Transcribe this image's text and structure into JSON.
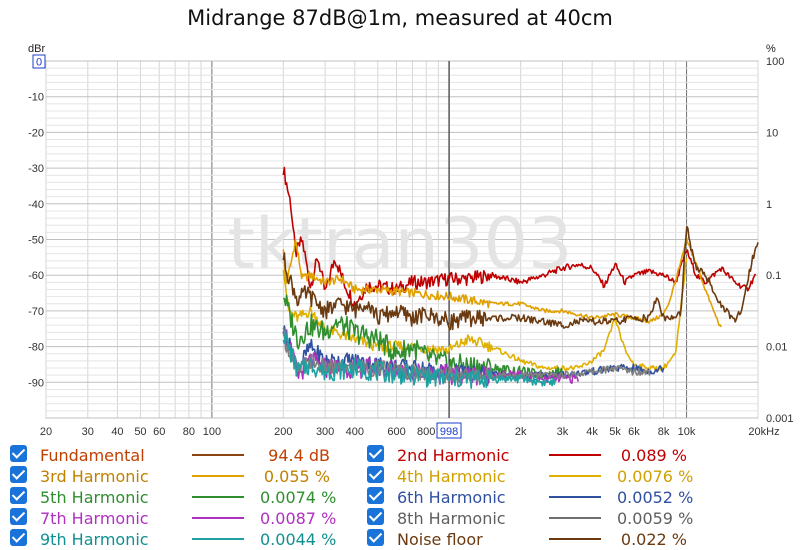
{
  "title": "Midrange 87dB@1m, measured at 40cm",
  "watermark": "tktran303",
  "chart_data": {
    "type": "line",
    "title": "Midrange 87dB@1m, measured at 40cm",
    "x_scale": "log",
    "xlim": [
      20,
      20000
    ],
    "x_tick_labels": [
      {
        "v": 20,
        "t": "20"
      },
      {
        "v": 30,
        "t": "30"
      },
      {
        "v": 40,
        "t": "40"
      },
      {
        "v": 50,
        "t": "50"
      },
      {
        "v": 60,
        "t": "60"
      },
      {
        "v": 80,
        "t": "80"
      },
      {
        "v": 100,
        "t": "100"
      },
      {
        "v": 200,
        "t": "200"
      },
      {
        "v": 300,
        "t": "300"
      },
      {
        "v": 400,
        "t": "400"
      },
      {
        "v": 600,
        "t": "600"
      },
      {
        "v": 800,
        "t": "800"
      },
      {
        "v": 2000,
        "t": "2k"
      },
      {
        "v": 3000,
        "t": "3k"
      },
      {
        "v": 4000,
        "t": "4k"
      },
      {
        "v": 5000,
        "t": "5k"
      },
      {
        "v": 6000,
        "t": "6k"
      },
      {
        "v": 8000,
        "t": "8k"
      },
      {
        "v": 10000,
        "t": "10k"
      },
      {
        "v": 20000,
        "t": "20kHz"
      }
    ],
    "cursor_label": "998",
    "cursor_x": 998,
    "left_axis": {
      "unit": "dBr",
      "top_label": "0",
      "ylim": [
        -100,
        0
      ],
      "ticks": [
        {
          "v": -10,
          "t": "-10"
        },
        {
          "v": -20,
          "t": "-20"
        },
        {
          "v": -30,
          "t": "-30"
        },
        {
          "v": -40,
          "t": "-40"
        },
        {
          "v": -50,
          "t": "-50"
        },
        {
          "v": -60,
          "t": "-60"
        },
        {
          "v": -70,
          "t": "-70"
        },
        {
          "v": -80,
          "t": "-80"
        },
        {
          "v": -90,
          "t": "-90"
        }
      ]
    },
    "right_axis": {
      "unit": "%",
      "scale": "log",
      "ylim": [
        0.001,
        100
      ],
      "ticks": [
        {
          "v": 100,
          "t": "100"
        },
        {
          "v": 10,
          "t": "10"
        },
        {
          "v": 1,
          "t": "1"
        },
        {
          "v": 0.1,
          "t": "0.1"
        },
        {
          "v": 0.01,
          "t": "0.01"
        },
        {
          "v": 0.001,
          "t": "0.001"
        }
      ]
    },
    "grid": true,
    "series": [
      {
        "name": "2nd Harmonic",
        "color": "#c00000",
        "noise": 1.2,
        "points": [
          [
            200,
            -30
          ],
          [
            215,
            -40
          ],
          [
            225,
            -54
          ],
          [
            240,
            -50
          ],
          [
            260,
            -63
          ],
          [
            280,
            -55
          ],
          [
            300,
            -65
          ],
          [
            330,
            -55
          ],
          [
            360,
            -62
          ],
          [
            400,
            -68
          ],
          [
            450,
            -63
          ],
          [
            500,
            -63
          ],
          [
            600,
            -64
          ],
          [
            700,
            -62
          ],
          [
            800,
            -62
          ],
          [
            1000,
            -61
          ],
          [
            1200,
            -61
          ],
          [
            1500,
            -60
          ],
          [
            2000,
            -62
          ],
          [
            2500,
            -60
          ],
          [
            3000,
            -58
          ],
          [
            3500,
            -57
          ],
          [
            4000,
            -58
          ],
          [
            4500,
            -63
          ],
          [
            5000,
            -57
          ],
          [
            5500,
            -62
          ],
          [
            6000,
            -60
          ],
          [
            7000,
            -59
          ],
          [
            8000,
            -60
          ],
          [
            9000,
            -62
          ],
          [
            10000,
            -53
          ],
          [
            11000,
            -60
          ],
          [
            12000,
            -62
          ],
          [
            14000,
            -58
          ],
          [
            16000,
            -62
          ],
          [
            18000,
            -64
          ],
          [
            19500,
            -60
          ]
        ]
      },
      {
        "name": "3rd Harmonic",
        "color": "#e0a000",
        "noise": 0.8,
        "points": [
          [
            200,
            -52
          ],
          [
            205,
            -63
          ],
          [
            215,
            -57
          ],
          [
            225,
            -50
          ],
          [
            240,
            -61
          ],
          [
            260,
            -60
          ],
          [
            300,
            -62
          ],
          [
            350,
            -61
          ],
          [
            400,
            -64
          ],
          [
            500,
            -64
          ],
          [
            700,
            -65
          ],
          [
            1000,
            -66
          ],
          [
            1500,
            -68
          ],
          [
            2000,
            -68
          ],
          [
            2500,
            -70
          ],
          [
            3000,
            -70
          ],
          [
            3500,
            -71
          ],
          [
            4000,
            -72
          ],
          [
            5000,
            -71
          ],
          [
            6000,
            -72
          ],
          [
            7000,
            -73
          ],
          [
            8000,
            -71
          ],
          [
            8500,
            -67
          ],
          [
            9500,
            -56
          ],
          [
            10000,
            -50
          ],
          [
            11000,
            -57
          ],
          [
            12000,
            -64
          ],
          [
            13000,
            -70
          ],
          [
            14000,
            -75
          ]
        ]
      },
      {
        "name": "4th Harmonic",
        "color": "#e0b000",
        "noise": 1.0,
        "points": [
          [
            200,
            -57
          ],
          [
            210,
            -70
          ],
          [
            230,
            -72
          ],
          [
            260,
            -70
          ],
          [
            300,
            -75
          ],
          [
            400,
            -78
          ],
          [
            500,
            -80
          ],
          [
            700,
            -80
          ],
          [
            1000,
            -81
          ],
          [
            1200,
            -78
          ],
          [
            1500,
            -80
          ],
          [
            2000,
            -84
          ],
          [
            2500,
            -86
          ],
          [
            3000,
            -86
          ],
          [
            3500,
            -86
          ],
          [
            4000,
            -84
          ],
          [
            4500,
            -81
          ],
          [
            5000,
            -72
          ],
          [
            5500,
            -81
          ],
          [
            6000,
            -85
          ],
          [
            7000,
            -86
          ],
          [
            8000,
            -86
          ],
          [
            9000,
            -82
          ],
          [
            10000,
            -55
          ]
        ]
      },
      {
        "name": "5th Harmonic",
        "color": "#2f8f2f",
        "noise": 2.0,
        "points": [
          [
            200,
            -65
          ],
          [
            210,
            -70
          ],
          [
            230,
            -78
          ],
          [
            260,
            -74
          ],
          [
            300,
            -76
          ],
          [
            330,
            -73
          ],
          [
            400,
            -76
          ],
          [
            500,
            -78
          ],
          [
            600,
            -82
          ],
          [
            700,
            -80
          ],
          [
            800,
            -83
          ],
          [
            1000,
            -85
          ],
          [
            1500,
            -86
          ],
          [
            2000,
            -87
          ],
          [
            2500,
            -88
          ],
          [
            3000,
            -87
          ]
        ]
      },
      {
        "name": "6th Harmonic",
        "color": "#3050a0",
        "noise": 1.5,
        "points": [
          [
            200,
            -75
          ],
          [
            230,
            -86
          ],
          [
            260,
            -80
          ],
          [
            300,
            -84
          ],
          [
            400,
            -84
          ],
          [
            500,
            -85
          ],
          [
            700,
            -86
          ],
          [
            1000,
            -87
          ],
          [
            1500,
            -88
          ],
          [
            2000,
            -88
          ],
          [
            3000,
            -88
          ],
          [
            4000,
            -87
          ],
          [
            5000,
            -86
          ],
          [
            6000,
            -86
          ],
          [
            7000,
            -87
          ],
          [
            8000,
            -86
          ]
        ]
      },
      {
        "name": "7th Harmonic",
        "color": "#b030c0",
        "noise": 1.8,
        "points": [
          [
            200,
            -74
          ],
          [
            230,
            -88
          ],
          [
            260,
            -84
          ],
          [
            300,
            -86
          ],
          [
            400,
            -86
          ],
          [
            500,
            -86
          ],
          [
            700,
            -87
          ],
          [
            1000,
            -88
          ],
          [
            1500,
            -88
          ],
          [
            2000,
            -88
          ],
          [
            2500,
            -89
          ],
          [
            3000,
            -89
          ],
          [
            3500,
            -89
          ]
        ]
      },
      {
        "name": "8th Harmonic",
        "color": "#808080",
        "noise": 1.5,
        "points": [
          [
            200,
            -77
          ],
          [
            230,
            -87
          ],
          [
            260,
            -84
          ],
          [
            300,
            -86
          ],
          [
            400,
            -86
          ],
          [
            500,
            -86
          ],
          [
            700,
            -87
          ],
          [
            1000,
            -88
          ],
          [
            1500,
            -88
          ],
          [
            2000,
            -88
          ],
          [
            3000,
            -88
          ],
          [
            4000,
            -87
          ],
          [
            5000,
            -86
          ],
          [
            6000,
            -87
          ],
          [
            7000,
            -87
          ]
        ]
      },
      {
        "name": "9th Harmonic",
        "color": "#20a0a0",
        "noise": 1.8,
        "points": [
          [
            200,
            -76
          ],
          [
            230,
            -87
          ],
          [
            260,
            -85
          ],
          [
            300,
            -87
          ],
          [
            400,
            -86
          ],
          [
            500,
            -87
          ],
          [
            700,
            -88
          ],
          [
            1000,
            -89
          ],
          [
            1500,
            -89
          ],
          [
            2000,
            -89
          ],
          [
            2500,
            -90
          ],
          [
            2800,
            -90
          ]
        ]
      },
      {
        "name": "Noise floor",
        "color": "#6b3a10",
        "noise": 1.5,
        "points": [
          [
            200,
            -55
          ],
          [
            210,
            -60
          ],
          [
            230,
            -67
          ],
          [
            250,
            -65
          ],
          [
            300,
            -70
          ],
          [
            350,
            -68
          ],
          [
            400,
            -70
          ],
          [
            450,
            -67
          ],
          [
            500,
            -72
          ],
          [
            600,
            -70
          ],
          [
            700,
            -72
          ],
          [
            800,
            -71
          ],
          [
            1000,
            -73
          ],
          [
            1200,
            -72
          ],
          [
            1500,
            -72
          ],
          [
            2000,
            -72
          ],
          [
            2500,
            -73
          ],
          [
            3000,
            -74
          ],
          [
            3500,
            -73
          ],
          [
            4000,
            -73
          ],
          [
            5000,
            -73
          ],
          [
            6000,
            -72
          ],
          [
            7000,
            -72
          ],
          [
            7500,
            -66
          ],
          [
            8000,
            -72
          ],
          [
            9000,
            -72
          ],
          [
            9500,
            -70
          ],
          [
            10000,
            -46
          ],
          [
            10500,
            -53
          ],
          [
            11000,
            -58
          ],
          [
            12000,
            -60
          ],
          [
            13000,
            -65
          ],
          [
            14000,
            -68
          ],
          [
            15000,
            -71
          ],
          [
            16000,
            -73
          ],
          [
            17000,
            -70
          ],
          [
            18000,
            -62
          ],
          [
            19000,
            -55
          ],
          [
            20000,
            -51
          ]
        ]
      }
    ]
  },
  "legend": [
    {
      "name": "Fundamental",
      "value": "94.4 dB",
      "color": "#8b4513",
      "text_color": "#c04000"
    },
    {
      "name": "2nd Harmonic",
      "value": "0.089 %",
      "color": "#c00000",
      "text_color": "#c00000"
    },
    {
      "name": "3rd Harmonic",
      "value": "0.055 %",
      "color": "#e0a000",
      "text_color": "#c08000"
    },
    {
      "name": "4th Harmonic",
      "value": "0.0076 %",
      "color": "#e0b000",
      "text_color": "#d0a000"
    },
    {
      "name": "5th Harmonic",
      "value": "0.0074 %",
      "color": "#2f8f2f",
      "text_color": "#2f8f2f"
    },
    {
      "name": "6th Harmonic",
      "value": "0.0052 %",
      "color": "#3050a0",
      "text_color": "#3050a0"
    },
    {
      "name": "7th Harmonic",
      "value": "0.0087 %",
      "color": "#b030c0",
      "text_color": "#b030c0"
    },
    {
      "name": "8th Harmonic",
      "value": "0.0059 %",
      "color": "#707070",
      "text_color": "#606060"
    },
    {
      "name": "9th Harmonic",
      "value": "0.0044 %",
      "color": "#20a0a0",
      "text_color": "#109090"
    },
    {
      "name": "Noise floor",
      "value": "0.022 %",
      "color": "#6b3a10",
      "text_color": "#6b3a10"
    }
  ]
}
